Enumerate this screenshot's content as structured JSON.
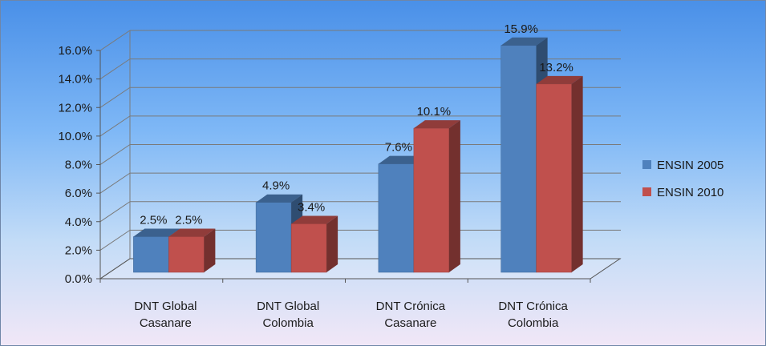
{
  "chart_data": {
    "type": "bar",
    "categories": [
      [
        "DNT Global",
        "Casanare"
      ],
      [
        "DNT Global",
        "Colombia"
      ],
      [
        "DNT Crónica",
        "Casanare"
      ],
      [
        "DNT Crónica",
        "Colombia"
      ]
    ],
    "series": [
      {
        "name": "ENSIN 2005",
        "color": "#4f81bd",
        "values": [
          2.5,
          4.9,
          7.6,
          15.9
        ],
        "labels": [
          "2.5%",
          "4.9%",
          "7.6%",
          "15.9%"
        ]
      },
      {
        "name": "ENSIN 2010",
        "color": "#c0504d",
        "values": [
          2.5,
          3.4,
          10.1,
          13.2
        ],
        "labels": [
          "2.5%",
          "3.4%",
          "10.1%",
          "13.2%"
        ]
      }
    ],
    "yticks": [
      "0.0%",
      "2.0%",
      "4.0%",
      "6.0%",
      "8.0%",
      "10.0%",
      "12.0%",
      "14.0%",
      "16.0%"
    ],
    "ylim": [
      0,
      16
    ],
    "grid": true,
    "legend": "right",
    "title": "",
    "xlabel": "",
    "ylabel": ""
  }
}
